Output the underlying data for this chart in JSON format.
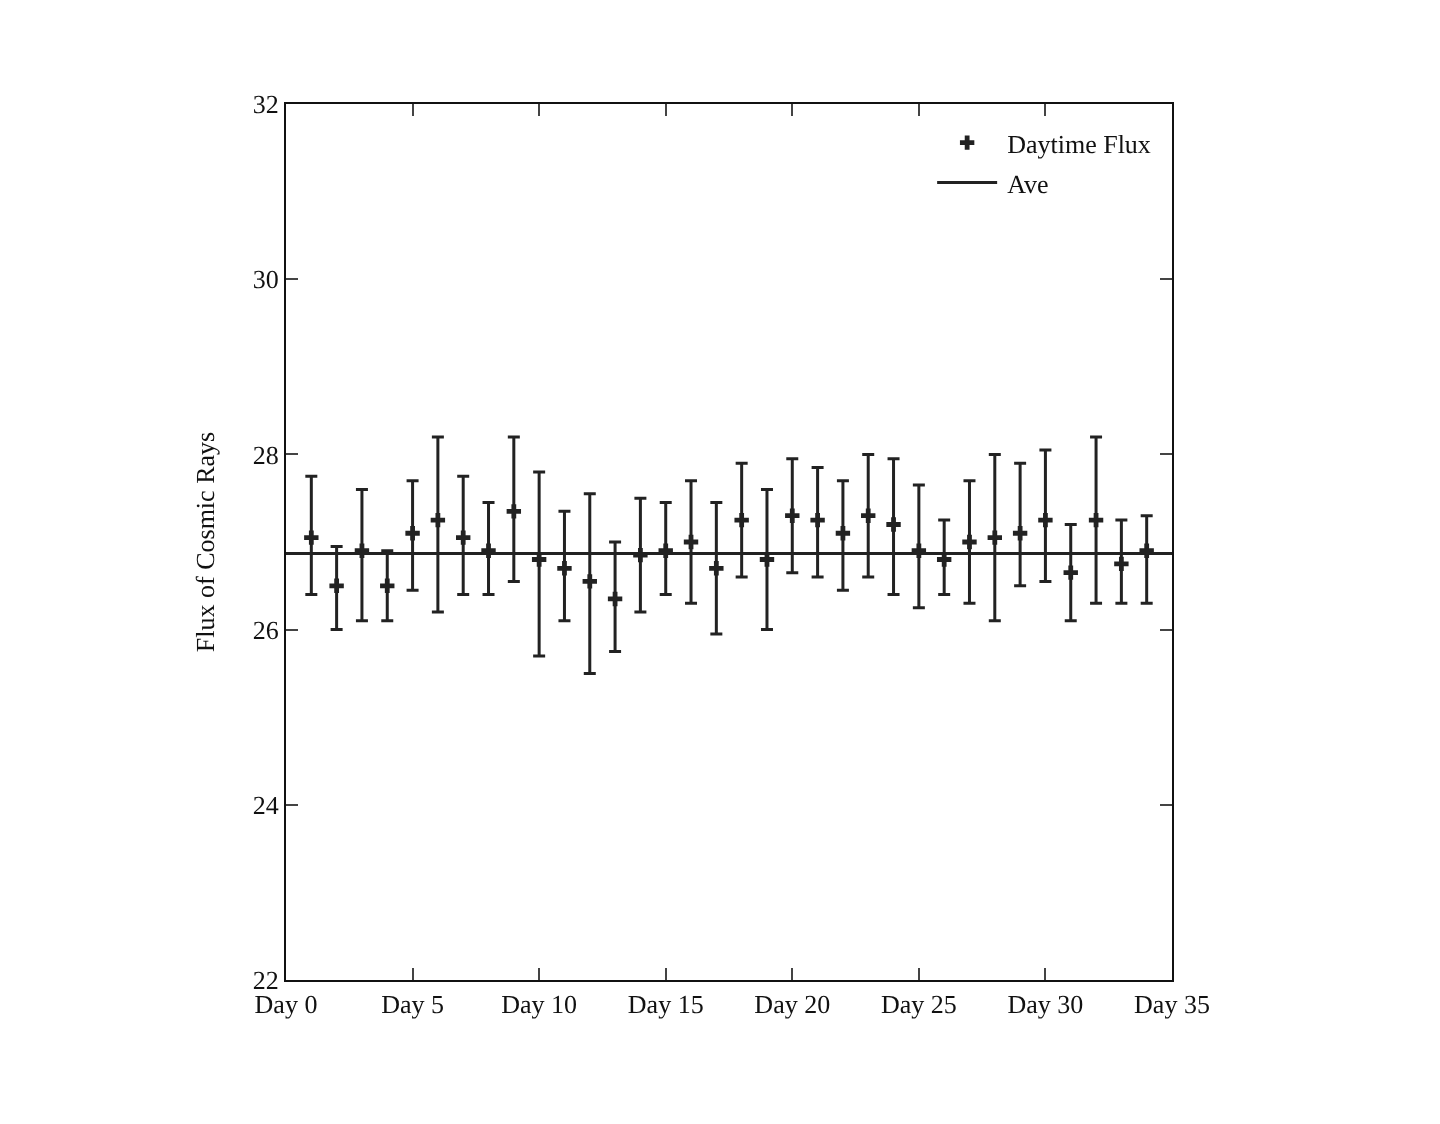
{
  "chart_data": {
    "type": "scatter",
    "ylabel": "Flux of Cosmic Rays",
    "legend": "top right",
    "grid": false,
    "categories": [
      "Day 0",
      null,
      null,
      null,
      null,
      "Day 5",
      null,
      null,
      null,
      null,
      "Day 10",
      null,
      null,
      null,
      null,
      "Day 15",
      null,
      null,
      null,
      null,
      "Day 20",
      null,
      null,
      null,
      null,
      "Day 25",
      null,
      null,
      null,
      null,
      "Day 30",
      null,
      null,
      null,
      null,
      "Day 35"
    ],
    "ylim": [
      22,
      32
    ],
    "yticks": [
      22,
      24,
      26,
      28,
      30,
      32
    ],
    "series": [
      {
        "name": "Daytime Flux",
        "color": "#222222",
        "marker": "cross",
        "values": [
          null,
          27.05,
          26.5,
          26.9,
          26.5,
          27.1,
          27.25,
          27.05,
          26.9,
          27.35,
          26.8,
          26.7,
          26.55,
          26.35,
          26.85,
          26.9,
          27.0,
          26.7,
          27.25,
          26.8,
          27.3,
          27.25,
          27.1,
          27.3,
          27.2,
          26.9,
          26.8,
          27.0,
          27.05,
          27.1,
          27.25,
          26.65,
          27.25,
          26.75,
          26.9,
          null
        ],
        "errors": [
          null,
          [
            26.4,
            27.75
          ],
          [
            26.0,
            26.95
          ],
          [
            26.1,
            27.6
          ],
          [
            26.1,
            26.9
          ],
          [
            26.45,
            27.7
          ],
          [
            26.2,
            28.2
          ],
          [
            26.4,
            27.75
          ],
          [
            26.4,
            27.45
          ],
          [
            26.55,
            28.2
          ],
          [
            25.7,
            27.8
          ],
          [
            26.1,
            27.35
          ],
          [
            25.5,
            27.55
          ],
          [
            25.75,
            27.0
          ],
          [
            26.2,
            27.5
          ],
          [
            26.4,
            27.45
          ],
          [
            26.3,
            27.7
          ],
          [
            25.95,
            27.45
          ],
          [
            26.6,
            27.9
          ],
          [
            26.0,
            27.6
          ],
          [
            26.65,
            27.95
          ],
          [
            26.6,
            27.85
          ],
          [
            26.45,
            27.7
          ],
          [
            26.6,
            28.0
          ],
          [
            26.4,
            27.95
          ],
          [
            26.25,
            27.65
          ],
          [
            26.4,
            27.25
          ],
          [
            26.3,
            27.7
          ],
          [
            26.1,
            28.0
          ],
          [
            26.5,
            27.9
          ],
          [
            26.55,
            28.05
          ],
          [
            26.1,
            27.2
          ],
          [
            26.3,
            28.2
          ],
          [
            26.3,
            27.25
          ],
          [
            26.3,
            27.3
          ],
          null
        ]
      },
      {
        "name": "Ave",
        "type": "line",
        "color": "#222222",
        "line_style": "solid",
        "values": [
          26.87,
          26.87,
          26.87,
          26.87,
          26.87,
          26.87,
          26.87,
          26.87,
          26.87,
          26.87,
          26.87,
          26.87,
          26.87,
          26.87,
          26.87,
          26.87,
          26.87,
          26.87,
          26.87,
          26.87,
          26.87,
          26.87,
          26.87,
          26.87,
          26.87,
          26.87,
          26.87,
          26.87,
          26.87,
          26.87,
          26.87,
          26.87,
          26.87,
          26.87,
          26.87,
          26.87
        ]
      }
    ]
  }
}
